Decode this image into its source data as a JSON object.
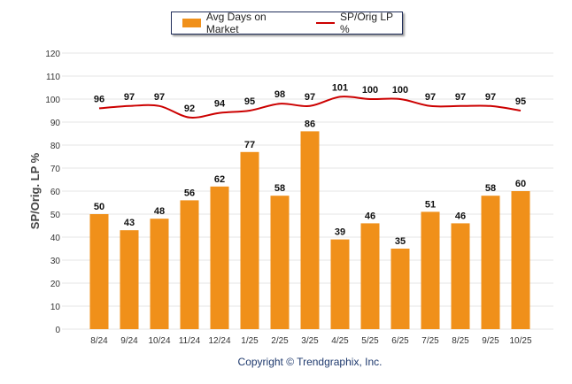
{
  "chart_data": {
    "type": "bar",
    "title": "",
    "xlabel": "",
    "ylabel": "SP/Orig. LP %",
    "ylim": [
      0,
      120
    ],
    "yticks": [
      0,
      10,
      20,
      30,
      40,
      50,
      60,
      70,
      80,
      90,
      100,
      110,
      120
    ],
    "grid": true,
    "legend_placement": "top-center",
    "categories": [
      "8/24",
      "9/24",
      "10/24",
      "11/24",
      "12/24",
      "1/25",
      "2/25",
      "3/25",
      "4/25",
      "5/25",
      "6/25",
      "7/25",
      "8/25",
      "9/25",
      "10/25"
    ],
    "series": [
      {
        "name": "Avg Days on Market",
        "type": "bar",
        "color": "#f0901a",
        "values": [
          50,
          43,
          48,
          56,
          62,
          77,
          58,
          86,
          39,
          46,
          35,
          51,
          46,
          58,
          60
        ]
      },
      {
        "name": "SP/Orig LP %",
        "type": "line",
        "color": "#cc0000",
        "values": [
          96,
          97,
          97,
          92,
          94,
          95,
          98,
          97,
          101,
          100,
          100,
          97,
          97,
          97,
          95
        ]
      }
    ]
  },
  "footer": {
    "copyright": "Copyright © Trendgraphix, Inc."
  }
}
